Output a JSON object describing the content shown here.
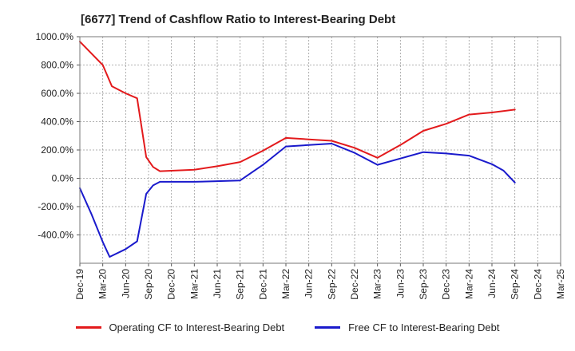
{
  "chart_data": {
    "type": "line",
    "title": "[6677]  Trend of Cashflow Ratio to Interest-Bearing Debt",
    "xlabel": "",
    "ylabel": "",
    "ylim": [
      -600,
      1000
    ],
    "y_ticks": [
      -400,
      -200,
      0,
      200,
      400,
      600,
      800,
      1000
    ],
    "y_tick_labels": [
      "-400.0%",
      "-200.0%",
      "0.0%",
      "200.0%",
      "400.0%",
      "600.0%",
      "800.0%",
      "1000.0%"
    ],
    "x_tick_labels": [
      "Dec-19",
      "Mar-20",
      "Jun-20",
      "Sep-20",
      "Dec-20",
      "Mar-21",
      "Jun-21",
      "Sep-21",
      "Dec-21",
      "Mar-22",
      "Jun-22",
      "Sep-22",
      "Dec-22",
      "Mar-23",
      "Jun-23",
      "Sep-23",
      "Dec-23",
      "Mar-24",
      "Jun-24",
      "Sep-24",
      "Dec-24",
      "Mar-25"
    ],
    "grid": true,
    "legend_position": "bottom",
    "series": [
      {
        "name": "Operating CF to Interest-Bearing Debt",
        "color": "#e31a1c",
        "points": [
          [
            0,
            965
          ],
          [
            1,
            800
          ],
          [
            1.4,
            650
          ],
          [
            2,
            600
          ],
          [
            2.5,
            565
          ],
          [
            2.9,
            150
          ],
          [
            3.2,
            80
          ],
          [
            3.5,
            50
          ],
          [
            5,
            60
          ],
          [
            6,
            85
          ],
          [
            7,
            115
          ],
          [
            8,
            195
          ],
          [
            9,
            285
          ],
          [
            10,
            275
          ],
          [
            11,
            265
          ],
          [
            12,
            215
          ],
          [
            13,
            145
          ],
          [
            14,
            235
          ],
          [
            15,
            335
          ],
          [
            16,
            385
          ],
          [
            17,
            450
          ],
          [
            18,
            465
          ],
          [
            19,
            485
          ]
        ]
      },
      {
        "name": "Free CF to Interest-Bearing Debt",
        "color": "#1a1acc",
        "points": [
          [
            0,
            -70
          ],
          [
            0.5,
            -250
          ],
          [
            1,
            -450
          ],
          [
            1.3,
            -555
          ],
          [
            2,
            -500
          ],
          [
            2.5,
            -445
          ],
          [
            2.9,
            -110
          ],
          [
            3.2,
            -50
          ],
          [
            3.5,
            -25
          ],
          [
            5,
            -25
          ],
          [
            6,
            -20
          ],
          [
            7,
            -15
          ],
          [
            8,
            95
          ],
          [
            9,
            225
          ],
          [
            10,
            235
          ],
          [
            11,
            245
          ],
          [
            12,
            180
          ],
          [
            13,
            95
          ],
          [
            14,
            140
          ],
          [
            15,
            185
          ],
          [
            16,
            175
          ],
          [
            17,
            160
          ],
          [
            18,
            100
          ],
          [
            18.5,
            55
          ],
          [
            19,
            -30
          ]
        ]
      }
    ]
  }
}
